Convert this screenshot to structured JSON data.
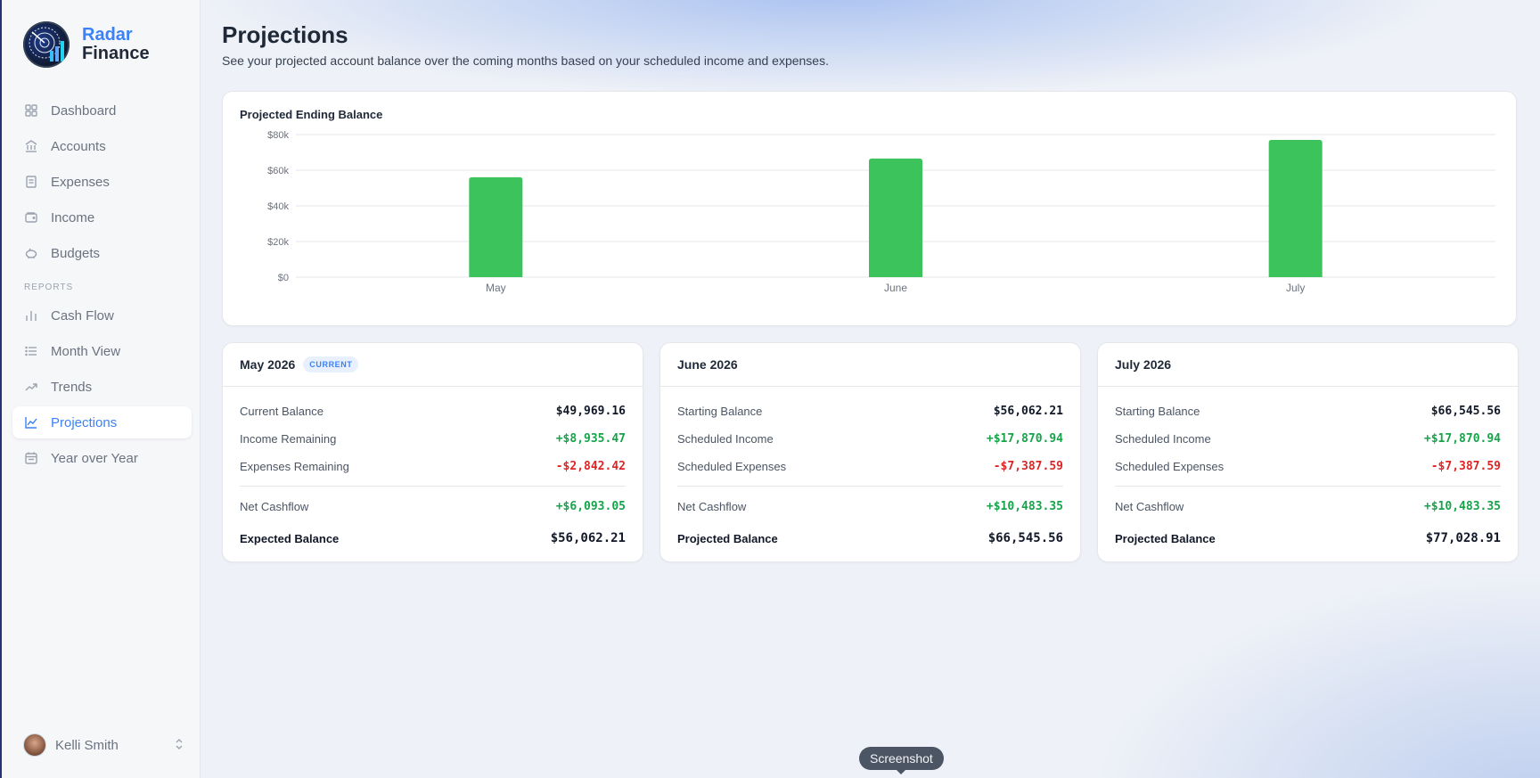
{
  "brand": {
    "line1": "Radar",
    "line2": "Finance"
  },
  "sidebar": {
    "items": [
      {
        "label": "Dashboard",
        "icon": "dashboard-icon"
      },
      {
        "label": "Accounts",
        "icon": "bank-icon"
      },
      {
        "label": "Expenses",
        "icon": "receipt-icon"
      },
      {
        "label": "Income",
        "icon": "wallet-icon"
      },
      {
        "label": "Budgets",
        "icon": "piggy-bank-icon"
      }
    ],
    "section_label": "REPORTS",
    "reports": [
      {
        "label": "Cash Flow",
        "icon": "bar-chart-icon"
      },
      {
        "label": "Month View",
        "icon": "list-icon"
      },
      {
        "label": "Trends",
        "icon": "trending-up-icon"
      },
      {
        "label": "Projections",
        "icon": "line-chart-icon",
        "active": true
      },
      {
        "label": "Year over Year",
        "icon": "calendar-icon"
      }
    ]
  },
  "user": {
    "name": "Kelli Smith"
  },
  "page": {
    "title": "Projections",
    "subtitle": "See your projected account balance over the coming months based on your scheduled income and expenses."
  },
  "chart_data": {
    "type": "bar",
    "title": "Projected Ending Balance",
    "categories": [
      "May",
      "June",
      "July"
    ],
    "values": [
      56062.21,
      66545.56,
      77028.91
    ],
    "ylim": [
      0,
      80000
    ],
    "yticks": [
      0,
      20000,
      40000,
      60000,
      80000
    ],
    "ytick_labels": [
      "$0",
      "$20k",
      "$40k",
      "$60k",
      "$80k"
    ],
    "xlabel": "",
    "ylabel": "",
    "grid": true,
    "color": "#3cc35c"
  },
  "months": [
    {
      "title": "May 2026",
      "badge": "CURRENT",
      "rows": [
        {
          "label": "Current Balance",
          "value": "$49,969.16"
        },
        {
          "label": "Income Remaining",
          "value": "+$8,935.47"
        },
        {
          "label": "Expenses Remaining",
          "value": "-$2,842.42"
        }
      ],
      "net_label": "Net Cashflow",
      "net_value": "+$6,093.05",
      "final_label": "Expected Balance",
      "final_value": "$56,062.21"
    },
    {
      "title": "June 2026",
      "rows": [
        {
          "label": "Starting Balance",
          "value": "$56,062.21"
        },
        {
          "label": "Scheduled Income",
          "value": "+$17,870.94"
        },
        {
          "label": "Scheduled Expenses",
          "value": "-$7,387.59"
        }
      ],
      "net_label": "Net Cashflow",
      "net_value": "+$10,483.35",
      "final_label": "Projected Balance",
      "final_value": "$66,545.56"
    },
    {
      "title": "July 2026",
      "rows": [
        {
          "label": "Starting Balance",
          "value": "$66,545.56"
        },
        {
          "label": "Scheduled Income",
          "value": "+$17,870.94"
        },
        {
          "label": "Scheduled Expenses",
          "value": "-$7,387.59"
        }
      ],
      "net_label": "Net Cashflow",
      "net_value": "+$10,483.35",
      "final_label": "Projected Balance",
      "final_value": "$77,028.91"
    }
  ],
  "colors": {
    "accent": "#3b82f6",
    "positive": "#16a34a",
    "negative": "#dc2626"
  },
  "tooltip": {
    "text": "Screenshot"
  }
}
